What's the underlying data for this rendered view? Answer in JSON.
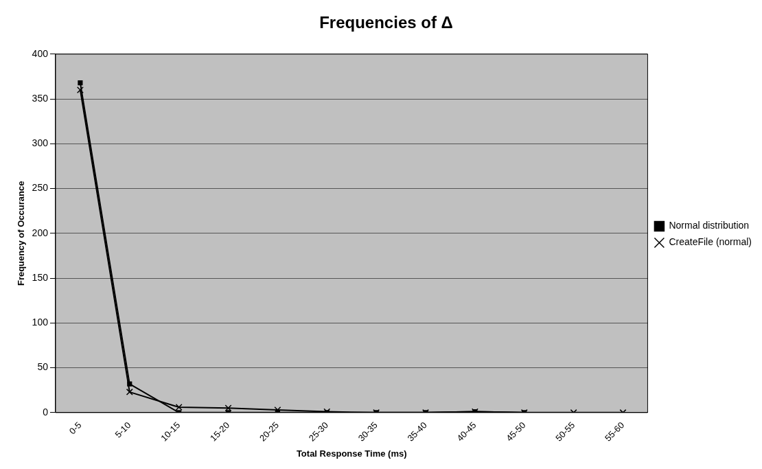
{
  "chart_data": {
    "type": "line",
    "title": "Frequencies of Δ",
    "xlabel": "Total Response Time (ms)",
    "ylabel": "Frequency of Occurance",
    "categories": [
      "0-5",
      "5-10",
      "10-15",
      "15-20",
      "20-25",
      "25-30",
      "30-35",
      "35-40",
      "40-45",
      "45-50",
      "50-55",
      "55-60"
    ],
    "series": [
      {
        "name": "Normal distribution",
        "color": "#000000",
        "marker": "square",
        "values": [
          368,
          32,
          0,
          0,
          0,
          0,
          0,
          0,
          1,
          0,
          null,
          null
        ]
      },
      {
        "name": "CreateFile (normal)",
        "color": "#000000",
        "marker": "cross",
        "values": [
          360,
          23,
          6,
          5,
          3,
          1,
          0,
          0,
          1,
          0,
          0,
          0
        ]
      }
    ],
    "ylim": [
      0,
      400
    ],
    "yticks": [
      0,
      50,
      100,
      150,
      200,
      250,
      300,
      350,
      400
    ],
    "grid": "y",
    "legend": "right",
    "line_style": "solid"
  }
}
